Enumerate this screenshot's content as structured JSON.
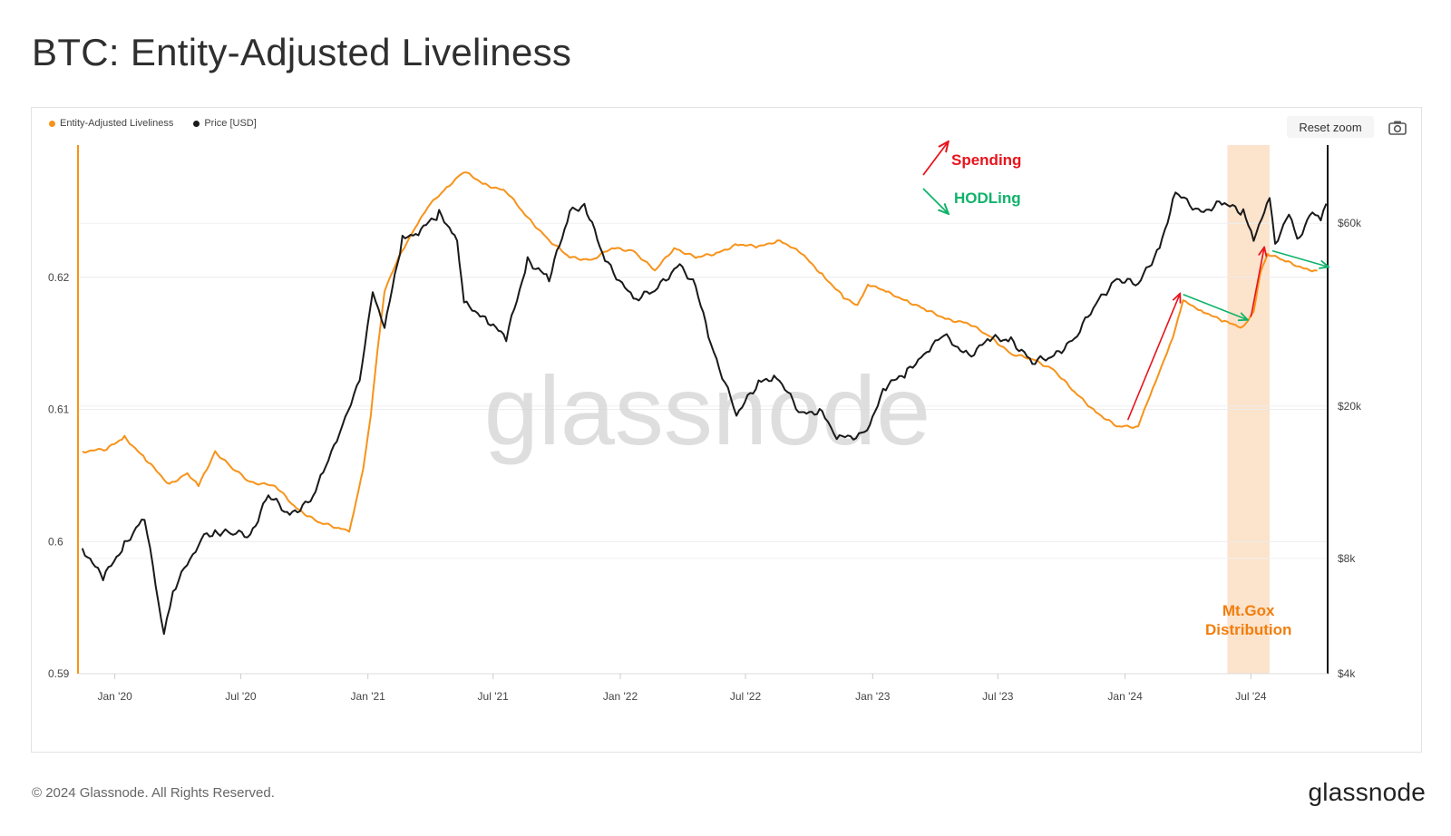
{
  "title": "BTC: Entity-Adjusted Liveliness",
  "toolbar": {
    "reset_zoom_label": "Reset zoom",
    "camera_icon": "camera-icon"
  },
  "footer": {
    "copyright": "© 2024 Glassnode. All Rights Reserved.",
    "logo_text": "glassnode"
  },
  "watermark": "glassnode",
  "colors": {
    "liveliness": "#f7931a",
    "price": "#1a1a1a",
    "spending": "#e8141c",
    "hodling": "#0fb36a",
    "highlight": "#fbe3cc",
    "annotation_orange": "#f27e0c"
  },
  "chart_data": {
    "type": "line",
    "legend": [
      {
        "name": "Entity-Adjusted Liveliness",
        "color": "#f7931a"
      },
      {
        "name": "Price [USD]",
        "color": "#1a1a1a"
      }
    ],
    "x_range": [
      "2019-11-10",
      "2024-10-20"
    ],
    "x_ticks": [
      "Jan '20",
      "Jul '20",
      "Jan '21",
      "Jul '21",
      "Jan '22",
      "Jul '22",
      "Jan '23",
      "Jul '23",
      "Jan '24",
      "Jul '24"
    ],
    "x_tick_dates": [
      "2020-01-01",
      "2020-07-01",
      "2021-01-01",
      "2021-07-01",
      "2022-01-01",
      "2022-07-01",
      "2023-01-01",
      "2023-07-01",
      "2024-01-01",
      "2024-07-01"
    ],
    "y_left": {
      "min": 0.59,
      "max": 0.63,
      "ticks": [
        0.59,
        0.6,
        0.61,
        0.62
      ],
      "tick_labels": [
        "0.59",
        "0.6",
        "0.61",
        "0.62"
      ]
    },
    "y_right": {
      "scale": "log",
      "min": 4000,
      "max": 96000,
      "ticks": [
        4000,
        8000,
        20000,
        60000
      ],
      "tick_labels": [
        "$4k",
        "$8k",
        "$20k",
        "$60k"
      ]
    },
    "series": [
      {
        "name": "Entity-Adjusted Liveliness",
        "axis": "left",
        "points": [
          [
            "2019-11-15",
            0.6068
          ],
          [
            "2019-12-20",
            0.607
          ],
          [
            "2020-01-15",
            0.6079
          ],
          [
            "2020-02-15",
            0.6062
          ],
          [
            "2020-03-20",
            0.6043
          ],
          [
            "2020-04-15",
            0.6052
          ],
          [
            "2020-05-01",
            0.6042
          ],
          [
            "2020-05-25",
            0.6068
          ],
          [
            "2020-06-20",
            0.6055
          ],
          [
            "2020-07-15",
            0.6045
          ],
          [
            "2020-08-20",
            0.6042
          ],
          [
            "2020-09-20",
            0.6025
          ],
          [
            "2020-10-20",
            0.6015
          ],
          [
            "2020-11-20",
            0.601
          ],
          [
            "2020-12-05",
            0.6008
          ],
          [
            "2020-12-15",
            0.603
          ],
          [
            "2020-12-25",
            0.6055
          ],
          [
            "2021-01-05",
            0.6095
          ],
          [
            "2021-01-15",
            0.6145
          ],
          [
            "2021-01-25",
            0.619
          ],
          [
            "2021-02-15",
            0.6215
          ],
          [
            "2021-03-10",
            0.6238
          ],
          [
            "2021-04-01",
            0.6255
          ],
          [
            "2021-04-25",
            0.6268
          ],
          [
            "2021-05-20",
            0.628
          ],
          [
            "2021-06-20",
            0.627
          ],
          [
            "2021-07-20",
            0.6265
          ],
          [
            "2021-08-20",
            0.6245
          ],
          [
            "2021-09-20",
            0.6228
          ],
          [
            "2021-10-20",
            0.6215
          ],
          [
            "2021-11-20",
            0.6213
          ],
          [
            "2021-12-20",
            0.6222
          ],
          [
            "2022-01-20",
            0.622
          ],
          [
            "2022-02-20",
            0.6205
          ],
          [
            "2022-03-20",
            0.6222
          ],
          [
            "2022-04-20",
            0.6215
          ],
          [
            "2022-05-20",
            0.6218
          ],
          [
            "2022-06-20",
            0.6225
          ],
          [
            "2022-07-20",
            0.6223
          ],
          [
            "2022-08-20",
            0.6228
          ],
          [
            "2022-09-20",
            0.6218
          ],
          [
            "2022-10-20",
            0.6202
          ],
          [
            "2022-11-20",
            0.6185
          ],
          [
            "2022-12-10",
            0.6178
          ],
          [
            "2022-12-25",
            0.6195
          ],
          [
            "2023-01-20",
            0.6189
          ],
          [
            "2023-02-20",
            0.6182
          ],
          [
            "2023-03-20",
            0.6175
          ],
          [
            "2023-04-20",
            0.6168
          ],
          [
            "2023-05-20",
            0.6165
          ],
          [
            "2023-06-20",
            0.6155
          ],
          [
            "2023-07-20",
            0.6142
          ],
          [
            "2023-08-20",
            0.6138
          ],
          [
            "2023-09-20",
            0.613
          ],
          [
            "2023-10-20",
            0.6113
          ],
          [
            "2023-11-20",
            0.6098
          ],
          [
            "2023-12-20",
            0.6087
          ],
          [
            "2024-01-20",
            0.6087
          ],
          [
            "2024-01-25",
            0.6095
          ],
          [
            "2024-02-10",
            0.6115
          ],
          [
            "2024-03-10",
            0.6155
          ],
          [
            "2024-03-25",
            0.6182
          ],
          [
            "2024-04-20",
            0.6175
          ],
          [
            "2024-05-20",
            0.6167
          ],
          [
            "2024-06-20",
            0.6162
          ],
          [
            "2024-07-05",
            0.6175
          ],
          [
            "2024-07-15",
            0.6203
          ],
          [
            "2024-07-25",
            0.6218
          ],
          [
            "2024-08-20",
            0.6212
          ],
          [
            "2024-09-20",
            0.6206
          ],
          [
            "2024-10-05",
            0.6205
          ]
        ]
      },
      {
        "name": "Price [USD]",
        "axis": "right",
        "points": [
          [
            "2019-11-15",
            8500
          ],
          [
            "2019-12-15",
            7100
          ],
          [
            "2020-01-15",
            8700
          ],
          [
            "2020-02-13",
            10300
          ],
          [
            "2020-03-12",
            5000
          ],
          [
            "2020-03-25",
            6600
          ],
          [
            "2020-05-05",
            9000
          ],
          [
            "2020-05-25",
            9400
          ],
          [
            "2020-06-20",
            9300
          ],
          [
            "2020-07-15",
            9200
          ],
          [
            "2020-08-10",
            11700
          ],
          [
            "2020-09-10",
            10400
          ],
          [
            "2020-10-10",
            11300
          ],
          [
            "2020-11-01",
            13800
          ],
          [
            "2020-11-25",
            18000
          ],
          [
            "2020-12-20",
            23000
          ],
          [
            "2021-01-08",
            40000
          ],
          [
            "2021-01-25",
            32000
          ],
          [
            "2021-02-20",
            55000
          ],
          [
            "2021-03-15",
            57000
          ],
          [
            "2021-04-14",
            63500
          ],
          [
            "2021-05-10",
            55000
          ],
          [
            "2021-05-20",
            37000
          ],
          [
            "2021-06-20",
            34000
          ],
          [
            "2021-07-20",
            30000
          ],
          [
            "2021-08-20",
            48000
          ],
          [
            "2021-09-20",
            43000
          ],
          [
            "2021-10-20",
            64000
          ],
          [
            "2021-11-10",
            67500
          ],
          [
            "2021-12-10",
            48000
          ],
          [
            "2022-01-20",
            38000
          ],
          [
            "2022-02-20",
            40000
          ],
          [
            "2022-03-28",
            47000
          ],
          [
            "2022-04-20",
            41000
          ],
          [
            "2022-05-12",
            29000
          ],
          [
            "2022-06-18",
            19000
          ],
          [
            "2022-07-20",
            23000
          ],
          [
            "2022-08-15",
            24000
          ],
          [
            "2022-09-20",
            19000
          ],
          [
            "2022-10-20",
            19500
          ],
          [
            "2022-11-10",
            16500
          ],
          [
            "2022-12-20",
            16800
          ],
          [
            "2023-01-20",
            22500
          ],
          [
            "2023-02-20",
            24500
          ],
          [
            "2023-03-20",
            28000
          ],
          [
            "2023-04-14",
            30500
          ],
          [
            "2023-05-20",
            27000
          ],
          [
            "2023-06-20",
            30000
          ],
          [
            "2023-07-20",
            29800
          ],
          [
            "2023-08-20",
            26000
          ],
          [
            "2023-09-20",
            27000
          ],
          [
            "2023-10-20",
            30000
          ],
          [
            "2023-11-20",
            37000
          ],
          [
            "2023-12-20",
            43000
          ],
          [
            "2024-01-20",
            41500
          ],
          [
            "2024-02-20",
            52000
          ],
          [
            "2024-03-14",
            72000
          ],
          [
            "2024-04-20",
            64000
          ],
          [
            "2024-05-20",
            68000
          ],
          [
            "2024-06-20",
            64000
          ],
          [
            "2024-07-05",
            55000
          ],
          [
            "2024-07-28",
            69000
          ],
          [
            "2024-08-05",
            53000
          ],
          [
            "2024-08-25",
            64000
          ],
          [
            "2024-09-06",
            53500
          ],
          [
            "2024-09-28",
            65500
          ],
          [
            "2024-10-10",
            60000
          ],
          [
            "2024-10-18",
            67500
          ]
        ]
      }
    ],
    "highlight_band": {
      "from": "2024-05-28",
      "to": "2024-07-28",
      "label": "Mt.Gox\nDistribution"
    },
    "annotations": [
      {
        "kind": "legend-arrow",
        "direction": "up",
        "color": "#e8141c",
        "label": "Spending"
      },
      {
        "kind": "legend-arrow",
        "direction": "down",
        "color": "#0fb36a",
        "label": "HODLing"
      }
    ],
    "trend_arrows": [
      {
        "color": "#e8141c",
        "from": [
          "2024-01-05",
          0.6092
        ],
        "to": [
          "2024-03-20",
          0.6187
        ]
      },
      {
        "color": "#0fb36a",
        "from": [
          "2024-03-25",
          0.6187
        ],
        "to": [
          "2024-06-25",
          0.6168
        ]
      },
      {
        "color": "#e8141c",
        "from": [
          "2024-07-01",
          0.617
        ],
        "to": [
          "2024-07-20",
          0.6222
        ]
      },
      {
        "color": "#0fb36a",
        "from": [
          "2024-08-01",
          0.622
        ],
        "to": [
          "2024-10-20",
          0.6208
        ]
      }
    ]
  }
}
